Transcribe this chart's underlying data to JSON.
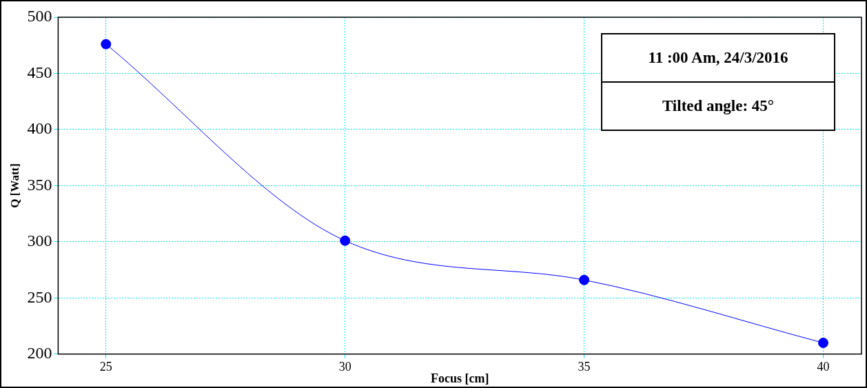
{
  "chart_data": {
    "type": "line",
    "xlabel": "Focus [cm]",
    "ylabel": "Q [Watt]",
    "x": [
      25,
      30,
      35,
      40
    ],
    "series": [
      {
        "color": "#0000ff",
        "values": [
          476,
          301,
          266,
          210
        ]
      }
    ],
    "xlim": [
      24,
      40.8
    ],
    "xticks": [
      25,
      30,
      35,
      40
    ],
    "ylim": [
      200,
      500
    ],
    "yticks": [
      200,
      250,
      300,
      350,
      400,
      450,
      500
    ],
    "grid": true,
    "legend": false,
    "marker": "circle",
    "line_style": "solid",
    "annotations": [
      "11 :00 Am,  24/3/2016",
      "Tilted angle: 45°"
    ]
  }
}
